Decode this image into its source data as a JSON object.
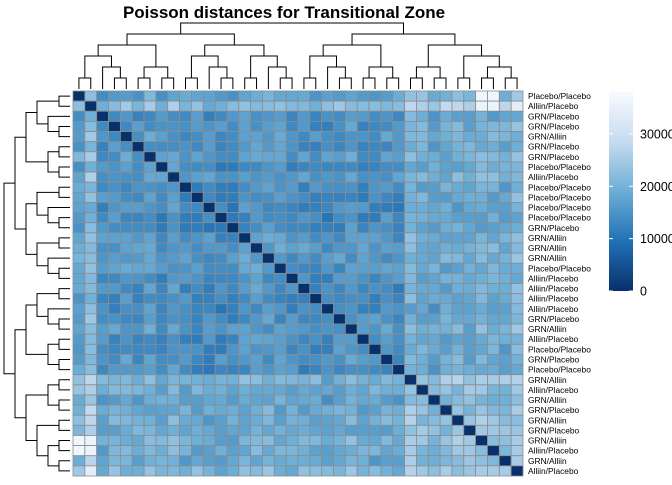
{
  "chart_data": {
    "type": "heatmap",
    "title": "Poisson distances for Transitional Zone",
    "row_labels": [
      "Placebo/Placebo",
      "Alliin/Placebo",
      "GRN/Placebo",
      "GRN/Placebo",
      "GRN/Alliin",
      "GRN/Placebo",
      "GRN/Placebo",
      "Placebo/Placebo",
      "Alliin/Placebo",
      "Placebo/Placebo",
      "Placebo/Placebo",
      "Placebo/Placebo",
      "Placebo/Placebo",
      "GRN/Placebo",
      "GRN/Alliin",
      "GRN/Alliin",
      "GRN/Alliin",
      "Placebo/Placebo",
      "Alliin/Placebo",
      "Alliin/Placebo",
      "Alliin/Placebo",
      "Alliin/Placebo",
      "GRN/Placebo",
      "GRN/Alliin",
      "Alliin/Placebo",
      "Placebo/Placebo",
      "GRN/Placebo",
      "Placebo/Placebo",
      "GRN/Alliin",
      "Alliin/Placebo",
      "GRN/Alliin",
      "GRN/Placebo",
      "GRN/Alliin",
      "GRN/Placebo",
      "GRN/Alliin",
      "Alliin/Placebo",
      "GRN/Alliin",
      "Alliin/Placebo"
    ],
    "colorbar": {
      "ticks": [
        0,
        10000,
        20000,
        30000
      ],
      "min": 0,
      "max": 38000,
      "colors": [
        "#08306b",
        "#2171b5",
        "#6baed6",
        "#c6dbef",
        "#f7fbff"
      ]
    },
    "value_estimates": {
      "diagonal": 0,
      "typical_range": [
        8000,
        22000
      ],
      "highest_pairs": [
        [
          1,
          34
        ],
        [
          1,
          35
        ],
        [
          1,
          37
        ],
        [
          0,
          34
        ],
        [
          0,
          35
        ]
      ],
      "max": 38000
    },
    "row_dendrogram": true,
    "column_dendrogram": true,
    "grid": true,
    "legend_position": "right"
  }
}
